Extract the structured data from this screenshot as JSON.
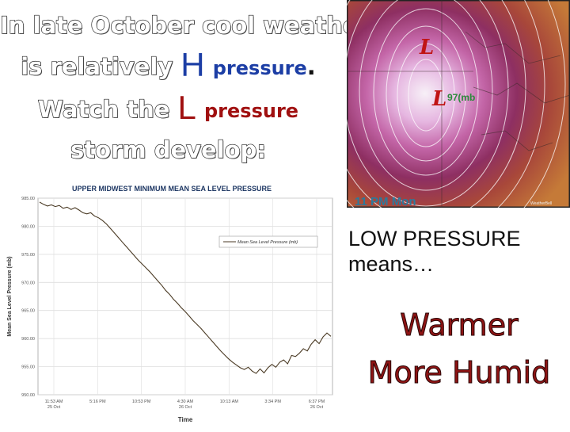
{
  "slide": {
    "line1": "In late October cool weather",
    "line2_pre": "is relatively",
    "h_letter": "H",
    "h_word": "pressure",
    "line2_end": ".",
    "line3_pre": "Watch the",
    "l_letter": "L",
    "l_word": "pressure",
    "line4": "storm develop:"
  },
  "map": {
    "low_marker_1": "L",
    "low_marker_2": "L",
    "pressure_label": "97(mb",
    "time_label": "11 PM Mon",
    "credit": "WeatherBell"
  },
  "right_text": {
    "low_pressure": "LOW PRESSURE",
    "means": "means…",
    "warmer": "Warmer",
    "humid": "More Humid"
  },
  "chart_data": {
    "type": "line",
    "title": "Upper Midwest Minimum Mean Sea Level Pressure",
    "xlabel": "Time",
    "ylabel": "Mean Sea Level Pressure (mb)",
    "ylim": [
      950,
      985
    ],
    "yticks": [
      "950.00",
      "955.00",
      "960.00",
      "965.00",
      "970.00",
      "975.00",
      "980.00",
      "985.00"
    ],
    "xticks": [
      {
        "l1": "11:53 AM",
        "l2": "25 Oct"
      },
      {
        "l1": "5:16 PM",
        "l2": ""
      },
      {
        "l1": "10:53 PM",
        "l2": ""
      },
      {
        "l1": "4:30 AM",
        "l2": "26 Oct"
      },
      {
        "l1": "10:13 AM",
        "l2": ""
      },
      {
        "l1": "3:34 PM",
        "l2": ""
      },
      {
        "l1": "6:37 PM",
        "l2": "26 Oct"
      }
    ],
    "legend": "Mean Sea Level Pressure (mb)",
    "legend_position": "right",
    "grid": true,
    "series": [
      {
        "name": "Mean Sea Level Pressure (mb)",
        "values": [
          984.3,
          983.9,
          983.6,
          983.8,
          983.5,
          983.7,
          983.2,
          983.4,
          983.0,
          983.3,
          982.9,
          982.4,
          982.2,
          982.4,
          981.8,
          981.5,
          981.0,
          980.4,
          979.6,
          978.8,
          978.0,
          977.2,
          976.4,
          975.6,
          974.8,
          974.0,
          973.3,
          972.6,
          971.9,
          971.1,
          970.3,
          969.5,
          968.6,
          967.9,
          967.0,
          966.3,
          965.5,
          964.8,
          964.0,
          963.2,
          962.5,
          961.8,
          961.0,
          960.2,
          959.4,
          958.6,
          957.8,
          957.1,
          956.4,
          955.8,
          955.3,
          954.8,
          954.5,
          954.9,
          954.2,
          953.8,
          954.6,
          953.9,
          954.8,
          955.4,
          954.9,
          955.8,
          956.2,
          955.5,
          957.0,
          956.8,
          957.4,
          958.2,
          957.8,
          959.0,
          959.8,
          959.1,
          960.3,
          961.0,
          960.4
        ]
      }
    ]
  }
}
